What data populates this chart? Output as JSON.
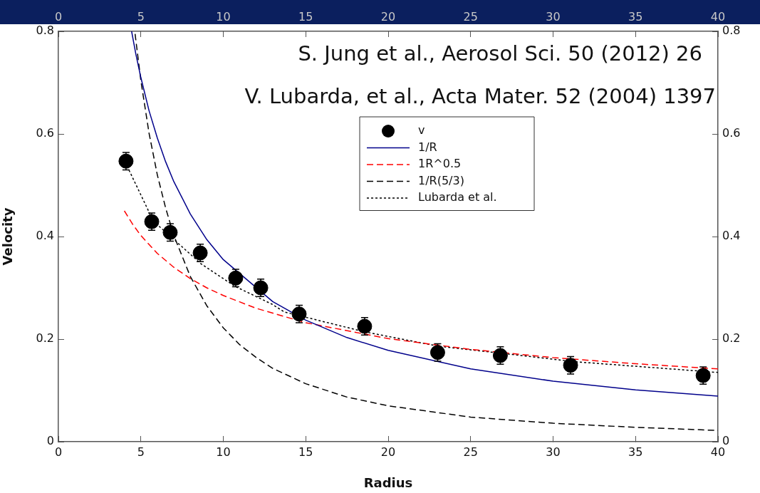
{
  "chart_data": {
    "type": "line",
    "xlabel": "Radius",
    "ylabel": "Velocity",
    "xlim": [
      0,
      40
    ],
    "xticks": [
      0,
      5,
      10,
      15,
      20,
      25,
      30,
      35,
      40
    ],
    "x2lim": [
      0,
      40
    ],
    "x2ticks": [
      0,
      5,
      10,
      15,
      20,
      25,
      30,
      35,
      40
    ],
    "ylim": [
      0,
      0.8
    ],
    "yticks": [
      0,
      0.2,
      0.4,
      0.6,
      {
        "value": 0.8,
        "label": "0.8"
      }
    ],
    "y2lim": [
      0,
      0.8
    ],
    "y2ticks": [
      0,
      0.2,
      0.4,
      0.6,
      {
        "value": 0.8,
        "label": "0.8"
      }
    ],
    "legend": "top right",
    "annotations": [
      "S. Jung et al., Aerosol Sci. 50 (2012) 26",
      "V. Lubarda, et al., Acta Mater. 52 (2004) 1397"
    ],
    "series": [
      {
        "name": "v",
        "type": "scatter",
        "marker": "circle",
        "color": "#000000",
        "x": [
          4.1,
          5.66,
          6.78,
          8.6,
          10.75,
          12.27,
          14.6,
          18.57,
          23,
          26.8,
          31.06,
          39.1
        ],
        "values": [
          0.547,
          0.429,
          0.408,
          0.368,
          0.319,
          0.3,
          0.249,
          0.225,
          0.174,
          0.168,
          0.149,
          0.129
        ],
        "errors": [
          0.017,
          0.017,
          0.017,
          0.017,
          0.017,
          0.017,
          0.017,
          0.017,
          0.017,
          0.017,
          0.017,
          0.017
        ]
      },
      {
        "name": "1/R",
        "type": "line",
        "marker": "none",
        "line_style": "solid",
        "color": "#00008b",
        "x": [
          4.44,
          4.7,
          5,
          5.5,
          6,
          6.5,
          7,
          8,
          9,
          10,
          13,
          15,
          17.5,
          20,
          25,
          30,
          35,
          40
        ],
        "values": [
          0.8,
          0.755,
          0.71,
          0.645,
          0.592,
          0.546,
          0.507,
          0.444,
          0.394,
          0.355,
          0.273,
          0.237,
          0.203,
          0.178,
          0.142,
          0.118,
          0.101,
          0.089
        ]
      },
      {
        "name": "1R^0.5",
        "type": "line",
        "marker": "none",
        "line_style": "dashed",
        "color": "#ff0000",
        "x": [
          4,
          4.5,
          5,
          6,
          7,
          8,
          9,
          10,
          12,
          15,
          20,
          25,
          30,
          35,
          40
        ],
        "values": [
          0.45,
          0.424,
          0.402,
          0.367,
          0.34,
          0.318,
          0.3,
          0.285,
          0.26,
          0.232,
          0.201,
          0.18,
          0.164,
          0.152,
          0.142
        ]
      },
      {
        "name": "1/R(5/3)",
        "type": "line",
        "marker": "none",
        "line_style": "dashed",
        "color": "#000000",
        "x": [
          4.65,
          5,
          5.5,
          6,
          6.5,
          7,
          8,
          9,
          10,
          11,
          12,
          13,
          15,
          17.5,
          20,
          25,
          30,
          35,
          40
        ],
        "values": [
          0.795,
          0.704,
          0.601,
          0.52,
          0.456,
          0.402,
          0.322,
          0.265,
          0.222,
          0.189,
          0.164,
          0.143,
          0.113,
          0.087,
          0.07,
          0.048,
          0.036,
          0.028,
          0.022
        ]
      },
      {
        "name": "Lubarda et al.",
        "type": "line",
        "marker": "none",
        "line_style": "dotted",
        "color": "#000000",
        "x": [
          4.17,
          5.76,
          7.05,
          8.64,
          10.7,
          12.96,
          13.7,
          18.6,
          23.07,
          27,
          31.3,
          40
        ],
        "values": [
          0.537,
          0.43,
          0.393,
          0.347,
          0.303,
          0.268,
          0.253,
          0.214,
          0.186,
          0.172,
          0.156,
          0.135
        ]
      }
    ]
  }
}
